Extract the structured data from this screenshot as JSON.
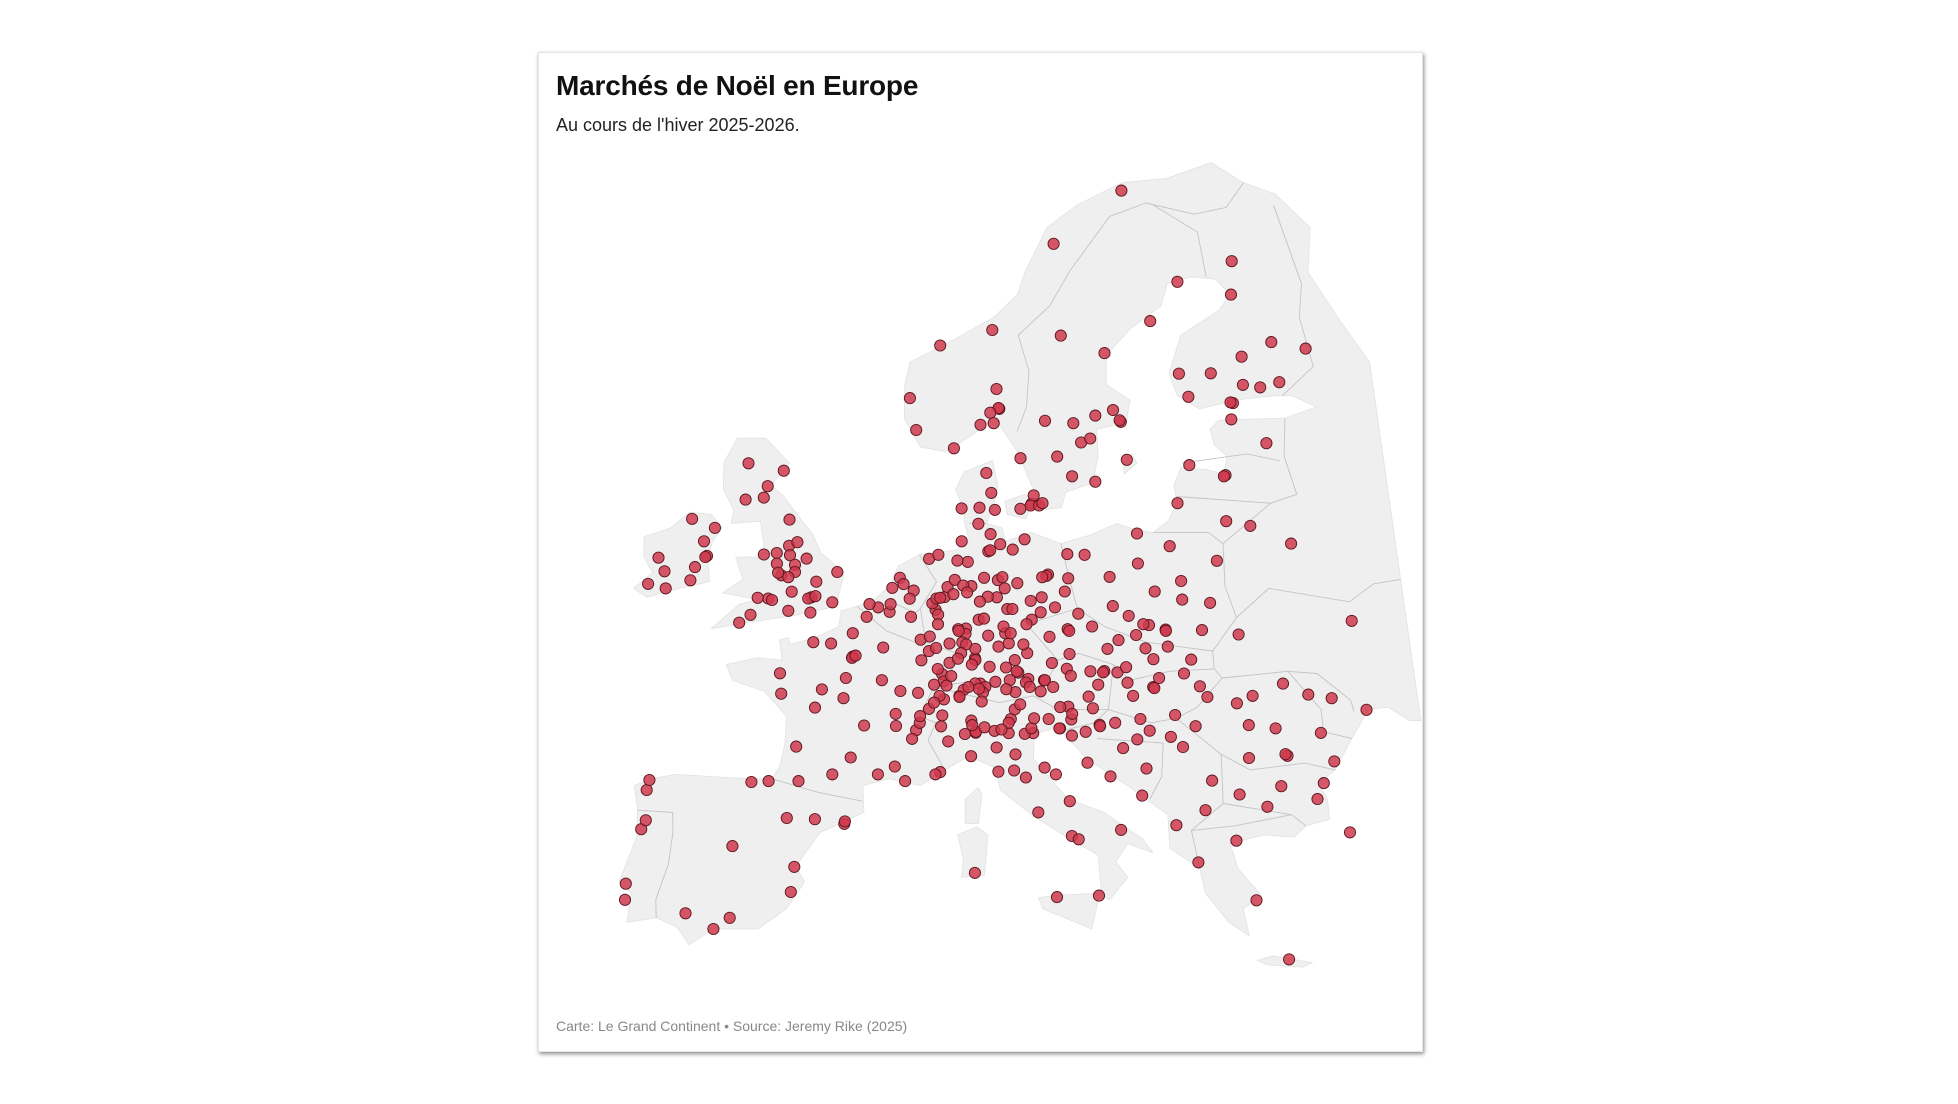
{
  "header": {
    "title": "Marchés de Noël en Europe",
    "subtitle": "Au cours de l'hiver 2025-2026."
  },
  "footer": {
    "credit": "Carte: Le Grand Continent • Source: Jeremy Rike (2025)"
  },
  "colors": {
    "land": "#efefef",
    "border": "#c4c4c4",
    "marker_fill": "#cf3a4c",
    "marker_stroke": "#5b1820"
  },
  "map_data": {
    "type": "point-map",
    "marker_label": "Marché de Noël",
    "markets_lon_lat": [
      [
        -9.14,
        38.72
      ],
      [
        -9.1,
        38.0
      ],
      [
        -8.6,
        41.15
      ],
      [
        -8.4,
        41.55
      ],
      [
        -8.5,
        42.9
      ],
      [
        -8.4,
        43.35
      ],
      [
        -5.9,
        37.4
      ],
      [
        -4.4,
        36.7
      ],
      [
        -3.7,
        40.4
      ],
      [
        -2.9,
        43.26
      ],
      [
        -1.98,
        43.3
      ],
      [
        -0.9,
        41.65
      ],
      [
        2.17,
        41.39
      ],
      [
        2.2,
        41.5
      ],
      [
        0.6,
        41.6
      ],
      [
        -0.38,
        39.47
      ],
      [
        -3.6,
        37.2
      ],
      [
        -0.5,
        38.35
      ],
      [
        2.35,
        48.86
      ],
      [
        2.3,
        48.8
      ],
      [
        2.5,
        48.9
      ],
      [
        4.83,
        45.76
      ],
      [
        5.37,
        43.3
      ],
      [
        7.26,
        43.7
      ],
      [
        7.0,
        43.6
      ],
      [
        1.44,
        43.6
      ],
      [
        -0.58,
        44.84
      ],
      [
        -1.55,
        47.2
      ],
      [
        -1.68,
        48.11
      ],
      [
        0.1,
        49.5
      ],
      [
        1.1,
        49.44
      ],
      [
        3.06,
        50.63
      ],
      [
        2.3,
        49.9
      ],
      [
        4.03,
        49.26
      ],
      [
        4.35,
        50.85
      ],
      [
        4.4,
        51.2
      ],
      [
        3.7,
        51.05
      ],
      [
        3.2,
        51.2
      ],
      [
        5.57,
        50.63
      ],
      [
        4.9,
        52.37
      ],
      [
        5.12,
        52.09
      ],
      [
        4.48,
        51.92
      ],
      [
        6.57,
        53.22
      ],
      [
        5.7,
        51.8
      ],
      [
        5.48,
        51.44
      ],
      [
        6.18,
        48.69
      ],
      [
        7.75,
        48.58
      ],
      [
        7.34,
        48.08
      ],
      [
        7.43,
        47.75
      ],
      [
        6.02,
        47.24
      ],
      [
        5.04,
        47.32
      ],
      [
        4.0,
        47.8
      ],
      [
        3.9,
        43.6
      ],
      [
        4.8,
        43.95
      ],
      [
        5.93,
        45.57
      ],
      [
        6.13,
        45.9
      ],
      [
        5.72,
        45.18
      ],
      [
        3.08,
        45.78
      ],
      [
        2.0,
        47.9
      ],
      [
        0.69,
        47.39
      ],
      [
        0.35,
        46.58
      ],
      [
        -0.37,
        43.3
      ],
      [
        1.9,
        47.0
      ],
      [
        2.4,
        44.35
      ],
      [
        4.8,
        46.3
      ],
      [
        6.9,
        47.6
      ],
      [
        7.1,
        48.3
      ],
      [
        6.6,
        49.1
      ],
      [
        6.13,
        49.61
      ],
      [
        -0.13,
        51.5
      ],
      [
        -0.3,
        51.45
      ],
      [
        0.1,
        51.55
      ],
      [
        -1.9,
        52.48
      ],
      [
        -2.24,
        53.48
      ],
      [
        -1.55,
        53.8
      ],
      [
        -1.47,
        53.38
      ],
      [
        -2.98,
        53.41
      ],
      [
        -1.61,
        54.97
      ],
      [
        -1.08,
        53.96
      ],
      [
        -1.15,
        52.95
      ],
      [
        -1.13,
        52.63
      ],
      [
        -1.26,
        51.75
      ],
      [
        0.12,
        52.2
      ],
      [
        1.3,
        52.63
      ],
      [
        -2.58,
        51.45
      ],
      [
        -3.18,
        51.48
      ],
      [
        -2.36,
        51.38
      ],
      [
        -1.4,
        50.9
      ],
      [
        -0.14,
        50.82
      ],
      [
        1.08,
        51.28
      ],
      [
        -4.14,
        50.37
      ],
      [
        -3.53,
        50.72
      ],
      [
        -2.2,
        53.0
      ],
      [
        -1.5,
        52.4
      ],
      [
        -2.1,
        52.6
      ],
      [
        -0.5,
        53.23
      ],
      [
        -3.19,
        55.95
      ],
      [
        -4.25,
        55.86
      ],
      [
        -2.1,
        57.15
      ],
      [
        -3.0,
        56.46
      ],
      [
        -4.23,
        57.48
      ],
      [
        -5.93,
        54.6
      ],
      [
        -6.26,
        53.35
      ],
      [
        -6.35,
        53.3
      ],
      [
        -8.47,
        51.9
      ],
      [
        -9.05,
        53.27
      ],
      [
        -8.63,
        52.66
      ],
      [
        -7.1,
        52.26
      ],
      [
        -6.5,
        54.0
      ],
      [
        -7.3,
        55.0
      ],
      [
        -9.5,
        52.1
      ],
      [
        -6.9,
        52.85
      ],
      [
        13.4,
        52.52
      ],
      [
        13.3,
        52.45
      ],
      [
        13.06,
        52.4
      ],
      [
        9.99,
        53.55
      ],
      [
        10.1,
        53.6
      ],
      [
        11.58,
        48.14
      ],
      [
        11.5,
        48.2
      ],
      [
        6.96,
        50.94
      ],
      [
        7.1,
        50.73
      ],
      [
        8.68,
        50.11
      ],
      [
        8.65,
        49.87
      ],
      [
        9.18,
        48.78
      ],
      [
        9.2,
        48.7
      ],
      [
        6.77,
        51.23
      ],
      [
        7.0,
        51.45
      ],
      [
        7.47,
        51.51
      ],
      [
        7.22,
        51.48
      ],
      [
        7.63,
        51.96
      ],
      [
        8.8,
        53.08
      ],
      [
        9.73,
        52.37
      ],
      [
        10.52,
        52.27
      ],
      [
        10.78,
        52.4
      ],
      [
        11.63,
        52.13
      ],
      [
        12.37,
        51.34
      ],
      [
        13.74,
        51.05
      ],
      [
        12.92,
        50.83
      ],
      [
        11.03,
        50.98
      ],
      [
        11.32,
        50.98
      ],
      [
        10.45,
        51.5
      ],
      [
        9.93,
        51.53
      ],
      [
        9.48,
        51.31
      ],
      [
        8.24,
        50.08
      ],
      [
        8.27,
        50.0
      ],
      [
        8.47,
        49.49
      ],
      [
        8.69,
        49.4
      ],
      [
        8.4,
        49.01
      ],
      [
        7.85,
        47.99
      ],
      [
        8.22,
        48.76
      ],
      [
        9.0,
        48.5
      ],
      [
        9.99,
        48.4
      ],
      [
        10.9,
        48.37
      ],
      [
        11.08,
        49.45
      ],
      [
        10.89,
        49.9
      ],
      [
        9.93,
        49.79
      ],
      [
        12.1,
        49.01
      ],
      [
        13.47,
        48.57
      ],
      [
        12.13,
        47.86
      ],
      [
        11.1,
        47.8
      ],
      [
        10.3,
        47.73
      ],
      [
        9.47,
        47.65
      ],
      [
        8.3,
        47.1
      ],
      [
        7.1,
        50.3
      ],
      [
        6.64,
        49.75
      ],
      [
        7.0,
        49.24
      ],
      [
        7.75,
        49.44
      ],
      [
        9.18,
        47.66
      ],
      [
        10.9,
        51.9
      ],
      [
        12.4,
        50.5
      ],
      [
        12.1,
        50.3
      ],
      [
        13.0,
        51.5
      ],
      [
        14.33,
        51.76
      ],
      [
        14.55,
        52.35
      ],
      [
        12.1,
        54.09
      ],
      [
        11.4,
        53.63
      ],
      [
        10.68,
        53.87
      ],
      [
        10.13,
        54.32
      ],
      [
        9.43,
        54.78
      ],
      [
        8.45,
        54.0
      ],
      [
        7.1,
        53.4
      ],
      [
        8.2,
        53.14
      ],
      [
        8.05,
        52.28
      ],
      [
        9.0,
        52.0
      ],
      [
        8.53,
        52.03
      ],
      [
        7.97,
        51.64
      ],
      [
        8.75,
        51.72
      ],
      [
        9.4,
        50.5
      ],
      [
        9.7,
        50.55
      ],
      [
        10.8,
        50.2
      ],
      [
        11.2,
        49.9
      ],
      [
        11.9,
        49.4
      ],
      [
        11.4,
        48.7
      ],
      [
        10.5,
        49.3
      ],
      [
        9.2,
        49.2
      ],
      [
        12.0,
        47.7
      ],
      [
        13.0,
        47.8
      ],
      [
        11.4,
        47.27
      ],
      [
        12.2,
        47.5
      ],
      [
        13.05,
        47.8
      ],
      [
        13.5,
        47.5
      ],
      [
        14.29,
        48.31
      ],
      [
        14.5,
        48.0
      ],
      [
        16.37,
        48.21
      ],
      [
        16.3,
        48.15
      ],
      [
        15.44,
        47.07
      ],
      [
        14.3,
        46.62
      ],
      [
        13.85,
        46.6
      ],
      [
        15.6,
        48.2
      ],
      [
        16.0,
        47.6
      ],
      [
        9.74,
        47.5
      ],
      [
        9.6,
        47.25
      ],
      [
        10.9,
        47.4
      ],
      [
        12.8,
        47.3
      ],
      [
        8.54,
        47.37
      ],
      [
        7.59,
        47.56
      ],
      [
        7.45,
        46.95
      ],
      [
        6.14,
        46.2
      ],
      [
        6.63,
        46.52
      ],
      [
        8.31,
        47.05
      ],
      [
        9.38,
        47.42
      ],
      [
        7.36,
        46.23
      ],
      [
        8.95,
        46.0
      ],
      [
        9.53,
        46.85
      ],
      [
        8.8,
        47.5
      ],
      [
        7.2,
        47.1
      ],
      [
        6.9,
        46.8
      ],
      [
        14.42,
        50.08
      ],
      [
        14.5,
        50.0
      ],
      [
        16.61,
        49.2
      ],
      [
        18.26,
        49.82
      ],
      [
        13.38,
        49.74
      ],
      [
        15.8,
        50.2
      ],
      [
        17.25,
        49.59
      ],
      [
        14.47,
        48.97
      ],
      [
        15.05,
        50.77
      ],
      [
        17.1,
        48.15
      ],
      [
        21.26,
        48.72
      ],
      [
        18.74,
        49.22
      ],
      [
        19.15,
        48.74
      ],
      [
        17.6,
        48.38
      ],
      [
        19.04,
        47.5
      ],
      [
        19.1,
        47.45
      ],
      [
        21.63,
        47.53
      ],
      [
        20.15,
        46.25
      ],
      [
        18.23,
        46.07
      ],
      [
        17.9,
        47.1
      ],
      [
        17.63,
        47.69
      ],
      [
        20.8,
        48.1
      ],
      [
        19.4,
        47.9
      ],
      [
        21.01,
        52.23
      ],
      [
        19.94,
        50.06
      ],
      [
        19.95,
        50.0
      ],
      [
        17.03,
        51.11
      ],
      [
        16.93,
        52.41
      ],
      [
        18.65,
        54.35
      ],
      [
        18.6,
        53.01
      ],
      [
        19.46,
        51.76
      ],
      [
        22.57,
        51.25
      ],
      [
        19.02,
        50.26
      ],
      [
        18.7,
        50.3
      ],
      [
        20.0,
        49.3
      ],
      [
        21.99,
        50.04
      ],
      [
        23.16,
        53.13
      ],
      [
        20.5,
        53.78
      ],
      [
        15.55,
        53.4
      ],
      [
        14.55,
        53.43
      ],
      [
        17.9,
        50.67
      ],
      [
        21.0,
        51.4
      ],
      [
        12.57,
        55.68
      ],
      [
        12.5,
        55.6
      ],
      [
        10.2,
        56.16
      ],
      [
        10.4,
        55.4
      ],
      [
        9.92,
        57.05
      ],
      [
        9.5,
        55.5
      ],
      [
        8.45,
        55.47
      ],
      [
        11.9,
        55.45
      ],
      [
        18.07,
        59.33
      ],
      [
        18.0,
        59.4
      ],
      [
        11.97,
        57.71
      ],
      [
        13.0,
        55.6
      ],
      [
        17.64,
        59.86
      ],
      [
        15.62,
        58.41
      ],
      [
        16.18,
        58.59
      ],
      [
        14.16,
        57.78
      ],
      [
        15.0,
        56.9
      ],
      [
        16.36,
        56.66
      ],
      [
        13.2,
        55.7
      ],
      [
        12.7,
        56.05
      ],
      [
        16.55,
        59.61
      ],
      [
        15.2,
        59.27
      ],
      [
        17.3,
        62.4
      ],
      [
        20.26,
        63.83
      ],
      [
        22.15,
        65.58
      ],
      [
        18.3,
        57.64
      ],
      [
        14.64,
        63.18
      ],
      [
        13.5,
        59.38
      ],
      [
        10.75,
        59.91
      ],
      [
        10.7,
        59.95
      ],
      [
        5.32,
        60.39
      ],
      [
        5.73,
        58.97
      ],
      [
        10.39,
        63.43
      ],
      [
        18.96,
        69.65
      ],
      [
        8.0,
        58.15
      ],
      [
        10.2,
        59.74
      ],
      [
        7.15,
        62.74
      ],
      [
        10.6,
        60.8
      ],
      [
        14.4,
        67.28
      ],
      [
        9.6,
        59.2
      ],
      [
        10.4,
        59.27
      ],
      [
        24.94,
        60.17
      ],
      [
        24.8,
        60.2
      ],
      [
        22.27,
        60.45
      ],
      [
        23.76,
        61.5
      ],
      [
        25.47,
        65.01
      ],
      [
        25.72,
        66.5
      ],
      [
        27.68,
        62.89
      ],
      [
        25.75,
        62.24
      ],
      [
        26.7,
        60.87
      ],
      [
        21.8,
        61.48
      ],
      [
        25.66,
        60.98
      ],
      [
        29.76,
        62.6
      ],
      [
        27.9,
        61.1
      ],
      [
        24.75,
        59.44
      ],
      [
        26.72,
        58.38
      ],
      [
        24.1,
        56.95
      ],
      [
        24.0,
        56.9
      ],
      [
        25.28,
        54.69
      ],
      [
        23.9,
        54.9
      ],
      [
        21.13,
        55.7
      ],
      [
        22.0,
        57.4
      ],
      [
        27.55,
        53.9
      ],
      [
        30.5,
        50.45
      ],
      [
        24.03,
        49.84
      ],
      [
        30.7,
        46.48
      ],
      [
        28.86,
        47.0
      ],
      [
        36.2,
        50.0
      ],
      [
        26.1,
        44.43
      ],
      [
        26.0,
        44.5
      ],
      [
        23.6,
        46.77
      ],
      [
        24.15,
        45.8
      ],
      [
        25.6,
        45.65
      ],
      [
        21.23,
        45.75
      ],
      [
        27.59,
        47.16
      ],
      [
        26.25,
        47.65
      ],
      [
        28.05,
        45.45
      ],
      [
        28.6,
        44.18
      ],
      [
        24.0,
        44.33
      ],
      [
        22.0,
        47.05
      ],
      [
        24.5,
        47.1
      ],
      [
        20.46,
        44.82
      ],
      [
        19.84,
        45.27
      ],
      [
        21.9,
        43.32
      ],
      [
        18.41,
        43.86
      ],
      [
        17.2,
        44.77
      ],
      [
        15.98,
        45.81
      ],
      [
        16.0,
        45.75
      ],
      [
        15.2,
        45.5
      ],
      [
        14.44,
        46.05
      ],
      [
        14.5,
        46.3
      ],
      [
        15.65,
        46.55
      ],
      [
        13.8,
        45.65
      ],
      [
        14.44,
        45.33
      ],
      [
        16.44,
        43.51
      ],
      [
        18.09,
        42.65
      ],
      [
        15.23,
        44.12
      ],
      [
        18.7,
        45.55
      ],
      [
        16.84,
        45.9
      ],
      [
        18.0,
        45.16
      ],
      [
        23.32,
        42.7
      ],
      [
        24.75,
        42.15
      ],
      [
        27.9,
        43.21
      ],
      [
        27.47,
        42.5
      ],
      [
        25.6,
        43.07
      ],
      [
        21.43,
        42.0
      ],
      [
        19.82,
        41.33
      ],
      [
        22.94,
        40.64
      ],
      [
        23.73,
        37.98
      ],
      [
        25.13,
        35.34
      ],
      [
        29.0,
        41.01
      ],
      [
        20.85,
        39.67
      ],
      [
        12.5,
        41.9
      ],
      [
        9.19,
        45.46
      ],
      [
        9.2,
        45.5
      ],
      [
        11.12,
        46.07
      ],
      [
        11.35,
        46.5
      ],
      [
        11.65,
        46.72
      ],
      [
        12.33,
        45.44
      ],
      [
        11.87,
        45.41
      ],
      [
        10.99,
        45.44
      ],
      [
        11.34,
        44.49
      ],
      [
        11.25,
        43.77
      ],
      [
        7.69,
        45.07
      ],
      [
        8.93,
        44.41
      ],
      [
        13.77,
        45.65
      ],
      [
        12.24,
        45.66
      ],
      [
        10.32,
        44.8
      ],
      [
        14.25,
        40.85
      ],
      [
        14.6,
        40.7
      ],
      [
        10.4,
        43.72
      ],
      [
        11.88,
        43.46
      ],
      [
        12.9,
        43.9
      ],
      [
        13.5,
        43.6
      ],
      [
        9.67,
        45.7
      ],
      [
        10.22,
        45.54
      ],
      [
        8.6,
        45.4
      ],
      [
        12.4,
        46.1
      ],
      [
        11.0,
        45.9
      ],
      [
        13.2,
        46.07
      ],
      [
        10.6,
        45.6
      ],
      [
        7.3,
        45.74
      ],
      [
        9.0,
        45.8
      ],
      [
        16.87,
        41.12
      ],
      [
        15.55,
        38.19
      ],
      [
        13.36,
        38.12
      ],
      [
        14.2,
        42.4
      ],
      [
        9.1,
        39.2
      ]
    ]
  }
}
